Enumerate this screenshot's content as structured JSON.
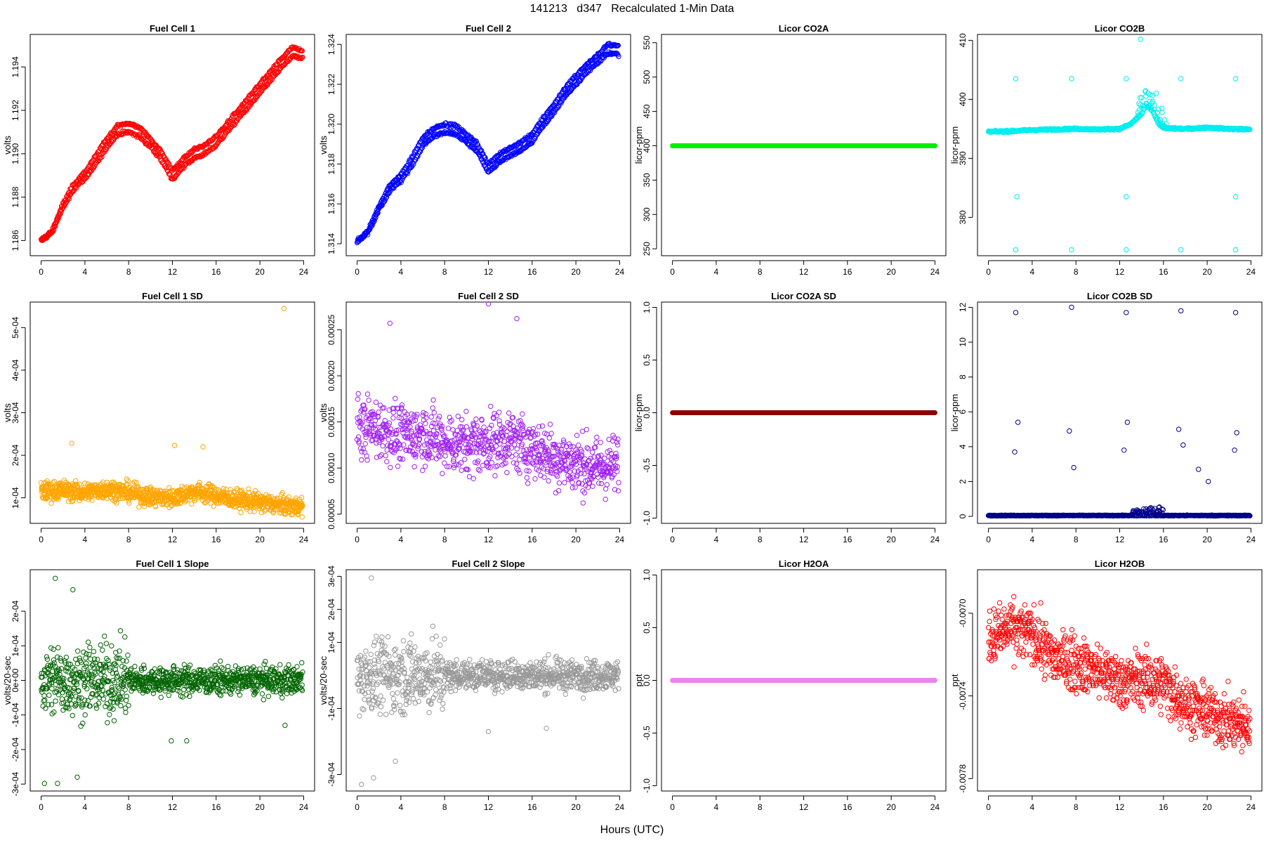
{
  "figure": {
    "title": "141213   d347   Recalculated 1-Min Data",
    "xlabel": "Hours (UTC)"
  },
  "chart_data": [
    {
      "id": "fc1",
      "type": "scatter",
      "title": "Fuel Cell 1",
      "ylabel": "volts",
      "color": "#ff0000",
      "xlim": [
        -1,
        25
      ],
      "xticks": [
        0,
        4,
        8,
        12,
        16,
        20,
        24
      ],
      "ylim": [
        1.1853,
        1.1955
      ],
      "yticks": [
        1.186,
        1.188,
        1.19,
        1.192,
        1.194
      ],
      "ytick_labels": [
        "1.186",
        "1.188",
        "1.190",
        "1.192",
        "1.194"
      ],
      "series": [
        {
          "x": [
            0,
            1,
            2,
            3,
            4,
            5,
            6,
            7,
            8,
            9,
            10,
            11,
            12,
            13,
            14,
            15,
            16,
            17,
            18,
            19,
            20,
            21,
            22,
            23,
            23.8
          ],
          "y": [
            1.186,
            1.1864,
            1.1876,
            1.1885,
            1.189,
            1.1897,
            1.1905,
            1.1911,
            1.1912,
            1.191,
            1.1905,
            1.1899,
            1.189,
            1.1896,
            1.19,
            1.1902,
            1.1906,
            1.1912,
            1.1918,
            1.1924,
            1.193,
            1.1936,
            1.1942,
            1.1947,
            1.1946
          ]
        }
      ]
    },
    {
      "id": "fc2",
      "type": "scatter",
      "title": "Fuel Cell 2",
      "ylabel": "volts",
      "color": "#0000ff",
      "xlim": [
        -1,
        25
      ],
      "xticks": [
        0,
        4,
        8,
        12,
        16,
        20,
        24
      ],
      "ylim": [
        1.3134,
        1.3245
      ],
      "yticks": [
        1.314,
        1.316,
        1.318,
        1.32,
        1.322,
        1.324
      ],
      "ytick_labels": [
        "1.314",
        "1.316",
        "1.318",
        "1.320",
        "1.322",
        "1.324"
      ],
      "series": [
        {
          "x": [
            0,
            1,
            2,
            3,
            4,
            5,
            6,
            7,
            8,
            9,
            10,
            11,
            12,
            13,
            14,
            15,
            16,
            17,
            18,
            19,
            20,
            21,
            22,
            23,
            23.8
          ],
          "y": [
            1.3141,
            1.3146,
            1.3158,
            1.3168,
            1.3173,
            1.3181,
            1.3191,
            1.3196,
            1.3198,
            1.3197,
            1.3193,
            1.3188,
            1.3178,
            1.3183,
            1.3186,
            1.3189,
            1.3193,
            1.3201,
            1.3208,
            1.3216,
            1.3222,
            1.3228,
            1.3233,
            1.3238,
            1.3237
          ]
        }
      ]
    },
    {
      "id": "co2a",
      "type": "scatter",
      "title": "Licor CO2A",
      "ylabel": "licor-ppm",
      "color": "#00ee00",
      "xlim": [
        -1,
        25
      ],
      "xticks": [
        0,
        4,
        8,
        12,
        16,
        20,
        24
      ],
      "ylim": [
        240,
        562
      ],
      "yticks": [
        250,
        300,
        350,
        400,
        450,
        500,
        550
      ],
      "ytick_labels": [
        "250",
        "300",
        "350",
        "400",
        "450",
        "500",
        "550"
      ],
      "series": [
        {
          "x": [
            0,
            24
          ],
          "y": [
            400,
            400
          ]
        }
      ]
    },
    {
      "id": "co2b",
      "type": "scatter",
      "title": "Licor CO2B",
      "ylabel": "licor-ppm",
      "color": "#00eeee",
      "xlim": [
        -1,
        25
      ],
      "xticks": [
        0,
        4,
        8,
        12,
        16,
        20,
        24
      ],
      "ylim": [
        373.5,
        411
      ],
      "yticks": [
        380,
        390,
        400,
        410
      ],
      "ytick_labels": [
        "380",
        "390",
        "400",
        "410"
      ],
      "series": [
        {
          "x": [
            0,
            2,
            4,
            6,
            8,
            10,
            12,
            13,
            14,
            14.5,
            15,
            15.5,
            16,
            18,
            20,
            22,
            24
          ],
          "y": [
            394.5,
            394.6,
            394.8,
            394.9,
            395,
            394.9,
            395,
            395.8,
            397.5,
            398.8,
            398,
            396,
            395.1,
            395,
            395.2,
            395,
            394.9
          ]
        }
      ],
      "outliers": [
        {
          "x": 2.5,
          "y": 403.5
        },
        {
          "x": 2.5,
          "y": 374.5
        },
        {
          "x": 2.6,
          "y": 383.5
        },
        {
          "x": 7.6,
          "y": 403.5
        },
        {
          "x": 7.6,
          "y": 374.5
        },
        {
          "x": 12.6,
          "y": 403.5
        },
        {
          "x": 12.6,
          "y": 374.5
        },
        {
          "x": 12.6,
          "y": 383.5
        },
        {
          "x": 17.6,
          "y": 403.5
        },
        {
          "x": 17.6,
          "y": 374.5
        },
        {
          "x": 22.6,
          "y": 403.5
        },
        {
          "x": 22.6,
          "y": 374.5
        },
        {
          "x": 22.6,
          "y": 383.5
        },
        {
          "x": 13.9,
          "y": 410.2
        }
      ]
    },
    {
      "id": "fc1sd",
      "type": "scatter",
      "title": "Fuel Cell 1 SD",
      "ylabel": "volts",
      "color": "#ffa500",
      "xlim": [
        -1,
        25
      ],
      "xticks": [
        0,
        4,
        8,
        12,
        16,
        20,
        24
      ],
      "ylim": [
        4e-05,
        0.00056
      ],
      "yticks": [
        0.0001,
        0.0002,
        0.0003,
        0.0004,
        0.0005
      ],
      "ytick_labels": [
        "1e-04",
        "2e-04",
        "3e-04",
        "4e-04",
        "5e-04"
      ],
      "series": [
        {
          "x": [
            0,
            2,
            4,
            6,
            8,
            10,
            12,
            14,
            16,
            18,
            20,
            22,
            24
          ],
          "y": [
            0.000115,
            0.000118,
            0.000112,
            0.000121,
            0.000113,
            0.000102,
            0.0001,
            0.000115,
            0.000105,
            9.5e-05,
            9e-05,
            8.2e-05,
            8e-05
          ]
        }
      ],
      "outliers": [
        {
          "x": 22.2,
          "y": 0.000545
        },
        {
          "x": 2.8,
          "y": 0.000228
        },
        {
          "x": 12.2,
          "y": 0.000223
        },
        {
          "x": 14.8,
          "y": 0.00022
        }
      ]
    },
    {
      "id": "fc2sd",
      "type": "scatter",
      "title": "Fuel Cell 2 SD",
      "ylabel": "volts",
      "color": "#a020f0",
      "xlim": [
        -1,
        25
      ],
      "xticks": [
        0,
        4,
        8,
        12,
        16,
        20,
        24
      ],
      "ylim": [
        4e-05,
        0.00028
      ],
      "yticks": [
        5e-05,
        0.0001,
        0.00015,
        0.0002,
        0.00025
      ],
      "ytick_labels": [
        "0.00005",
        "0.00010",
        "0.00015",
        "0.00020",
        "0.00025"
      ],
      "series": [
        {
          "x": [
            0,
            2,
            4,
            6,
            8,
            10,
            12,
            14,
            16,
            18,
            20,
            22,
            24
          ],
          "y": [
            0.000145,
            0.000143,
            0.000135,
            0.000138,
            0.000128,
            0.000125,
            0.000128,
            0.00013,
            0.000122,
            0.000112,
            0.000105,
            0.0001,
            0.000105
          ]
        }
      ],
      "outliers": [
        {
          "x": 12,
          "y": 0.000278
        },
        {
          "x": 14.6,
          "y": 0.000262
        },
        {
          "x": 3,
          "y": 0.000257
        }
      ]
    },
    {
      "id": "co2asd",
      "type": "scatter",
      "title": "Licor CO2A SD",
      "ylabel": "licor-ppm",
      "color": "#8b0000",
      "xlim": [
        -1,
        25
      ],
      "xticks": [
        0,
        4,
        8,
        12,
        16,
        20,
        24
      ],
      "ylim": [
        -1.05,
        1.05
      ],
      "yticks": [
        -1,
        -0.5,
        0,
        0.5,
        1
      ],
      "ytick_labels": [
        "-1.0",
        "-0.5",
        "0.0",
        "0.5",
        "1.0"
      ],
      "series": [
        {
          "x": [
            0,
            24
          ],
          "y": [
            0,
            0
          ]
        }
      ]
    },
    {
      "id": "co2bsd",
      "type": "scatter",
      "title": "Licor CO2B SD",
      "ylabel": "licor-ppm",
      "color": "#00008b",
      "xlim": [
        -1,
        25
      ],
      "xticks": [
        0,
        4,
        8,
        12,
        16,
        20,
        24
      ],
      "ylim": [
        -0.4,
        12.3
      ],
      "yticks": [
        0,
        2,
        4,
        6,
        8,
        10,
        12
      ],
      "ytick_labels": [
        "0",
        "2",
        "4",
        "6",
        "8",
        "10",
        "12"
      ],
      "series": [
        {
          "x": [
            0,
            24
          ],
          "y": [
            0.05,
            0.05
          ]
        }
      ],
      "outliers": [
        {
          "x": 2.5,
          "y": 11.7
        },
        {
          "x": 2.7,
          "y": 5.4
        },
        {
          "x": 2.4,
          "y": 3.7
        },
        {
          "x": 7.6,
          "y": 12
        },
        {
          "x": 7.4,
          "y": 4.9
        },
        {
          "x": 7.8,
          "y": 2.8
        },
        {
          "x": 12.6,
          "y": 11.7
        },
        {
          "x": 12.7,
          "y": 5.4
        },
        {
          "x": 12.4,
          "y": 3.8
        },
        {
          "x": 17.6,
          "y": 11.8
        },
        {
          "x": 17.4,
          "y": 5
        },
        {
          "x": 17.8,
          "y": 4.1
        },
        {
          "x": 22.6,
          "y": 11.7
        },
        {
          "x": 22.7,
          "y": 4.8
        },
        {
          "x": 22.5,
          "y": 3.8
        },
        {
          "x": 19.2,
          "y": 2.7
        },
        {
          "x": 20.1,
          "y": 2
        }
      ]
    },
    {
      "id": "fc1slope",
      "type": "scatter",
      "title": "Fuel Cell 1 Slope",
      "ylabel": "volts/20-sec",
      "color": "#006400",
      "xlim": [
        -1,
        25
      ],
      "xticks": [
        0,
        4,
        8,
        12,
        16,
        20,
        24
      ],
      "ylim": [
        -0.00032,
        0.00032
      ],
      "yticks": [
        -0.0003,
        -0.0002,
        -0.0001,
        0,
        0.0001,
        0.0002
      ],
      "ytick_labels": [
        "-3e-04",
        "-2e-04",
        "-1e-04",
        "0e+00",
        "1e-04",
        "2e-04"
      ],
      "series": [
        {
          "x": [
            0,
            4,
            8,
            12,
            16,
            20,
            24
          ],
          "y": [
            0,
            0,
            0,
            0,
            0,
            0,
            0
          ]
        }
      ],
      "outliers": [
        {
          "x": 1.3,
          "y": 0.000295
        },
        {
          "x": 2.9,
          "y": 0.000262
        },
        {
          "x": 0.3,
          "y": -0.000298
        },
        {
          "x": 1.5,
          "y": -0.000298
        },
        {
          "x": 3.3,
          "y": -0.00028
        },
        {
          "x": 11.9,
          "y": -0.000175
        },
        {
          "x": 13.3,
          "y": -0.000175
        },
        {
          "x": 22.3,
          "y": -0.00013
        }
      ]
    },
    {
      "id": "fc2slope",
      "type": "scatter",
      "title": "Fuel Cell 2 Slope",
      "ylabel": "volts/20-sec",
      "color": "#999999",
      "xlim": [
        -1,
        25
      ],
      "xticks": [
        0,
        4,
        8,
        12,
        16,
        20,
        24
      ],
      "ylim": [
        -0.00035,
        0.00032
      ],
      "yticks": [
        -0.0003,
        -0.0001,
        0.0001,
        0.0002,
        0.0003
      ],
      "ytick_labels": [
        "-3e-04",
        "-1e-04",
        "1e-04",
        "2e-04",
        "3e-04"
      ],
      "series": [
        {
          "x": [
            0,
            4,
            8,
            12,
            16,
            20,
            24
          ],
          "y": [
            0,
            0,
            0,
            0,
            0,
            0,
            0
          ]
        }
      ],
      "outliers": [
        {
          "x": 1.3,
          "y": 0.000295
        },
        {
          "x": 0.4,
          "y": -0.00033
        },
        {
          "x": 1.5,
          "y": -0.00031
        },
        {
          "x": 3.5,
          "y": -0.00026
        },
        {
          "x": 12,
          "y": -0.00017
        },
        {
          "x": 17.3,
          "y": -0.00016
        }
      ]
    },
    {
      "id": "h2oa",
      "type": "scatter",
      "title": "Licor H2OA",
      "ylabel": "ppt",
      "color": "#ee82ee",
      "xlim": [
        -1,
        25
      ],
      "xticks": [
        0,
        4,
        8,
        12,
        16,
        20,
        24
      ],
      "ylim": [
        -1.05,
        1.05
      ],
      "yticks": [
        -1,
        -0.5,
        0,
        0.5,
        1
      ],
      "ytick_labels": [
        "-1.0",
        "-0.5",
        "0.0",
        "0.5",
        "1.0"
      ],
      "series": [
        {
          "x": [
            0,
            24
          ],
          "y": [
            0,
            0
          ]
        }
      ]
    },
    {
      "id": "h2ob",
      "type": "scatter",
      "title": "Licor H2OB",
      "ylabel": "ppt",
      "color": "#ff0000",
      "xlim": [
        -1,
        25
      ],
      "xticks": [
        0,
        4,
        8,
        12,
        16,
        20,
        24
      ],
      "ylim": [
        -0.00786,
        -0.00679
      ],
      "yticks": [
        -0.0078,
        -0.0074,
        -0.007
      ],
      "ytick_labels": [
        "-0.0078",
        "-0.0074",
        "-0.0070"
      ],
      "series": [
        {
          "x": [
            0,
            2,
            4,
            6,
            8,
            10,
            12,
            14,
            16,
            18,
            20,
            22,
            24
          ],
          "y": [
            -0.00712,
            -0.00708,
            -0.0071,
            -0.00722,
            -0.00724,
            -0.00728,
            -0.00733,
            -0.00732,
            -0.00734,
            -0.00744,
            -0.00748,
            -0.00752,
            -0.00756
          ]
        }
      ]
    }
  ]
}
